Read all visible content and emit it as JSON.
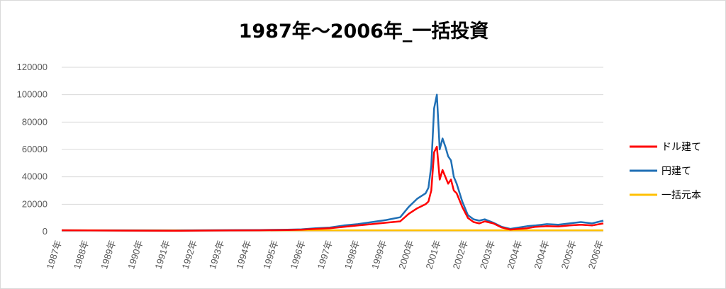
{
  "colors": {
    "dollar": "#ff0000",
    "yen": "#1f6fb5",
    "principal": "#ffc000",
    "grid": "#d9d9d9",
    "tick_text": "#595959"
  },
  "chart_data": {
    "type": "line",
    "title": "1987年～2006年_一括投資",
    "xlabel": "",
    "ylabel": "",
    "ylim": [
      0,
      120000
    ],
    "yticks": [
      "0",
      "20000",
      "40000",
      "60000",
      "80000",
      "100000",
      "120000"
    ],
    "grid": true,
    "legend_position": "right",
    "x_tick_labels": [
      "1987年",
      "1988年",
      "1989年",
      "1990年",
      "1991年",
      "1992年",
      "1993年",
      "1994年",
      "1995年",
      "1996年",
      "1997年",
      "1998年",
      "1999年",
      "2000年",
      "2001年",
      "2002年",
      "2003年",
      "2004年",
      "2004年",
      "2005年",
      "2006年"
    ],
    "x": [
      1987.0,
      1988.0,
      1989.0,
      1990.0,
      1991.0,
      1992.0,
      1993.0,
      1994.0,
      1995.0,
      1995.5,
      1996.0,
      1996.5,
      1997.0,
      1997.5,
      1998.0,
      1998.5,
      1999.0,
      1999.3,
      1999.6,
      1999.9,
      2000.0,
      2000.1,
      2000.2,
      2000.3,
      2000.4,
      2000.5,
      2000.6,
      2000.7,
      2000.8,
      2000.9,
      2001.0,
      2001.2,
      2001.4,
      2001.6,
      2001.8,
      2002.0,
      2002.3,
      2002.6,
      2002.9,
      2003.2,
      2003.5,
      2003.8,
      2004.2,
      2004.6,
      2005.0,
      2005.4,
      2005.8,
      2006.2
    ],
    "series": [
      {
        "name": "ドル建て",
        "values": [
          1000,
          900,
          800,
          700,
          600,
          800,
          900,
          1000,
          1200,
          1400,
          2000,
          2500,
          3500,
          4500,
          5500,
          6500,
          7500,
          13000,
          17000,
          20000,
          22000,
          30000,
          58000,
          62000,
          38000,
          45000,
          40000,
          35000,
          38000,
          30000,
          28000,
          18000,
          10000,
          7000,
          6000,
          7500,
          6000,
          3000,
          1500,
          2000,
          2500,
          3500,
          4000,
          3800,
          4500,
          5000,
          4500,
          6000
        ]
      },
      {
        "name": "円建て",
        "values": [
          1000,
          950,
          900,
          850,
          800,
          1000,
          1100,
          1200,
          1400,
          1700,
          2500,
          3000,
          4500,
          5500,
          7000,
          8500,
          10500,
          18000,
          24000,
          28000,
          32000,
          48000,
          90000,
          100000,
          60000,
          68000,
          62000,
          55000,
          52000,
          40000,
          35000,
          22000,
          12000,
          9000,
          8000,
          9000,
          6500,
          3500,
          2000,
          3000,
          4000,
          4500,
          5500,
          5000,
          6000,
          7000,
          6000,
          8000
        ]
      },
      {
        "name": "一括元本",
        "values": [
          1000,
          1000,
          1000,
          1000,
          1000,
          1000,
          1000,
          1000,
          1000,
          1000,
          1000,
          1000,
          1000,
          1000,
          1000,
          1000,
          1000,
          1000,
          1000,
          1000,
          1000,
          1000,
          1000,
          1000,
          1000,
          1000,
          1000,
          1000,
          1000,
          1000,
          1000,
          1000,
          1000,
          1000,
          1000,
          1000,
          1000,
          1000,
          1000,
          1000,
          1000,
          1000,
          1000,
          1000,
          1000,
          1000,
          1000,
          1000
        ]
      }
    ]
  }
}
